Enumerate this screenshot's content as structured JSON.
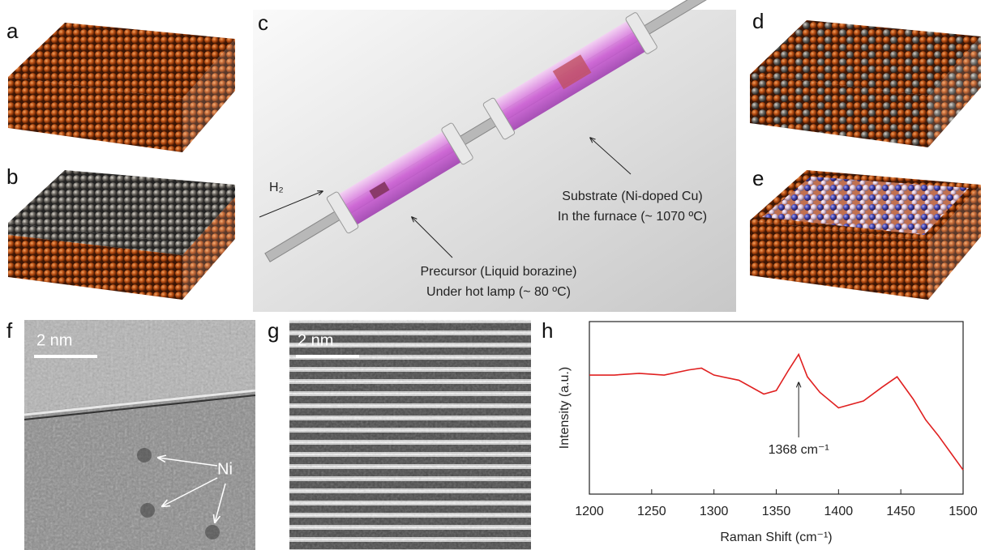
{
  "panel_labels": [
    "a",
    "b",
    "c",
    "d",
    "e",
    "f",
    "g",
    "h"
  ],
  "panel_c": {
    "gas": "H₂",
    "substrate": [
      "Substrate (Ni-doped Cu)",
      "In the furnace (~ 1070 ºC)"
    ],
    "precursor": [
      "Precursor (Liquid borazine)",
      "Under hot lamp (~ 80 ºC)"
    ]
  },
  "panel_f": {
    "scale_bar": "2 nm",
    "annotation": "Ni"
  },
  "panel_g": {
    "scale_bar": "2 nm"
  },
  "chart_data": {
    "type": "line",
    "x_label": "Raman Shift (cm⁻¹)",
    "y_label": "Intensity (a.u.)",
    "annotation": "1368 cm⁻¹",
    "annotation_x": 1368,
    "x": [
      1200,
      1220,
      1240,
      1260,
      1280,
      1290,
      1300,
      1320,
      1340,
      1350,
      1360,
      1368,
      1375,
      1385,
      1400,
      1420,
      1435,
      1447,
      1460,
      1470,
      1480,
      1490,
      1500
    ],
    "series": [
      {
        "color": "#e02020",
        "values": [
          69,
          69,
          70,
          69,
          72,
          73,
          69,
          66,
          58,
          60,
          72,
          81,
          68,
          59,
          50,
          54,
          62,
          68,
          55,
          43,
          34,
          24,
          14
        ]
      }
    ],
    "xlim": [
      1200,
      1500
    ],
    "xticks": [
      1200,
      1250,
      1300,
      1350,
      1400,
      1450,
      1500
    ],
    "ylim": [
      0,
      100
    ]
  }
}
